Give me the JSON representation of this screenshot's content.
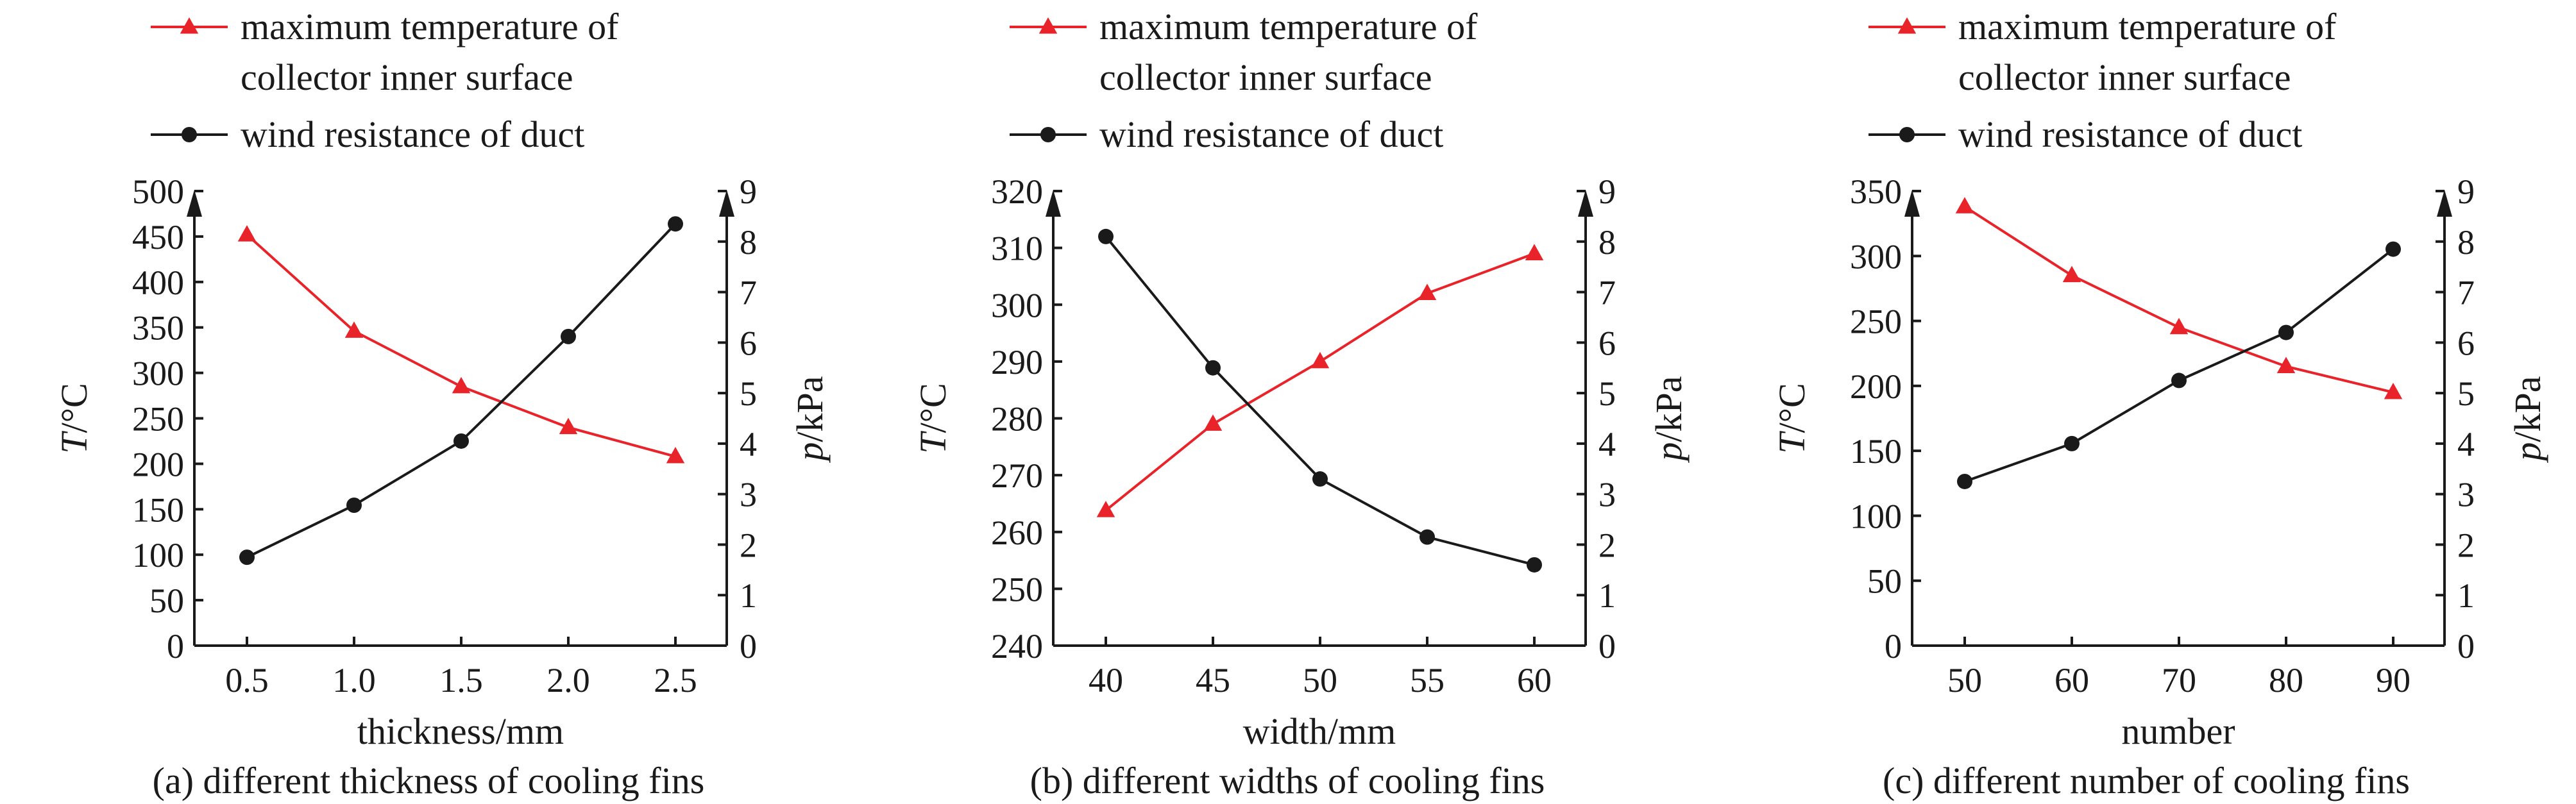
{
  "chart_data": [
    {
      "type": "line",
      "caption": "(a) different thickness of cooling fins",
      "xlabel": "thickness/mm",
      "ylabel": "T/°C",
      "y2label": "p/kPa",
      "ylabel_italic": "T",
      "ylabel_rest": "/°C",
      "y2label_italic": "p",
      "y2label_rest": "/kPa",
      "categories": [
        "0.5",
        "1.0",
        "1.5",
        "2.0",
        "2.5"
      ],
      "ylim": [
        0,
        500
      ],
      "yticks": [
        0,
        50,
        100,
        150,
        200,
        250,
        300,
        350,
        400,
        450,
        500
      ],
      "y2lim": [
        0,
        9
      ],
      "y2ticks": [
        0,
        1,
        2,
        3,
        4,
        5,
        6,
        7,
        8,
        9
      ],
      "series": [
        {
          "name": "maximum temperature of collector inner surface",
          "name_line1": "maximum temperature of",
          "name_line2": "collector inner surface",
          "axis": "left",
          "color": "#e8242a",
          "marker": "triangle",
          "values": [
            452,
            346,
            285,
            240,
            208
          ]
        },
        {
          "name": "wind resistance of duct",
          "axis": "right",
          "color": "#1a1a1a",
          "marker": "circle",
          "values": [
            1.75,
            2.78,
            4.05,
            6.12,
            8.35
          ]
        }
      ]
    },
    {
      "type": "line",
      "caption": "(b) different widths of cooling fins",
      "xlabel": "width/mm",
      "ylabel": "T/°C",
      "y2label": "p/kPa",
      "ylabel_italic": "T",
      "ylabel_rest": "/°C",
      "y2label_italic": "p",
      "y2label_rest": "/kPa",
      "categories": [
        "40",
        "45",
        "50",
        "55",
        "60"
      ],
      "ylim": [
        240,
        320
      ],
      "yticks": [
        240,
        250,
        260,
        270,
        280,
        290,
        300,
        310,
        320
      ],
      "y2lim": [
        0,
        9
      ],
      "y2ticks": [
        0,
        1,
        2,
        3,
        4,
        5,
        6,
        7,
        8,
        9
      ],
      "series": [
        {
          "name": "maximum temperature of collector inner surface",
          "name_line1": "maximum temperature of",
          "name_line2": "collector inner surface",
          "axis": "left",
          "color": "#e8242a",
          "marker": "triangle",
          "values": [
            263.8,
            279,
            290,
            302,
            309
          ]
        },
        {
          "name": "wind resistance of duct",
          "axis": "right",
          "color": "#1a1a1a",
          "marker": "circle",
          "values": [
            8.1,
            5.5,
            3.3,
            2.15,
            1.6
          ]
        }
      ]
    },
    {
      "type": "line",
      "caption": "(c) different number of cooling fins",
      "xlabel": "number",
      "ylabel": "T/°C",
      "y2label": "p/kPa",
      "ylabel_italic": "T",
      "ylabel_rest": "/°C",
      "y2label_italic": "p",
      "y2label_rest": "/kPa",
      "categories": [
        "50",
        "60",
        "70",
        "80",
        "90"
      ],
      "ylim": [
        0,
        350
      ],
      "yticks": [
        0,
        50,
        100,
        150,
        200,
        250,
        300,
        350
      ],
      "y2lim": [
        0,
        9
      ],
      "y2ticks": [
        0,
        1,
        2,
        3,
        4,
        5,
        6,
        7,
        8,
        9
      ],
      "series": [
        {
          "name": "maximum temperature of collector inner surface",
          "name_line1": "maximum temperature of",
          "name_line2": "collector inner surface",
          "axis": "left",
          "color": "#e8242a",
          "marker": "triangle",
          "values": [
            338,
            285,
            245,
            215,
            195
          ]
        },
        {
          "name": "wind resistance of duct",
          "axis": "right",
          "color": "#1a1a1a",
          "marker": "circle",
          "values": [
            3.25,
            4.0,
            5.25,
            6.2,
            7.85
          ]
        }
      ]
    }
  ]
}
